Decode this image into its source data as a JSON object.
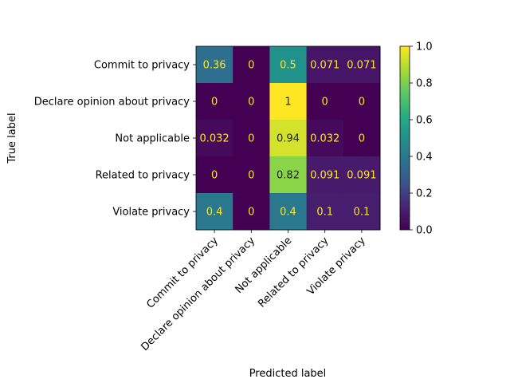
{
  "chart_data": {
    "type": "heatmap",
    "title": "",
    "xlabel": "Predicted label",
    "ylabel": "True label",
    "x_categories": [
      "Commit to privacy",
      "Declare opinion about privacy",
      "Not applicable",
      "Related to privacy",
      "Violate privacy"
    ],
    "y_categories": [
      "Commit to privacy",
      "Declare opinion about privacy",
      "Not applicable",
      "Related to privacy",
      "Violate privacy"
    ],
    "values": [
      [
        0.36,
        0,
        0.5,
        0.071,
        0.071
      ],
      [
        0,
        0,
        1,
        0,
        0
      ],
      [
        0.032,
        0,
        0.94,
        0.032,
        0
      ],
      [
        0,
        0,
        0.82,
        0.091,
        0.091
      ],
      [
        0.4,
        0,
        0.4,
        0.1,
        0.1
      ]
    ],
    "cell_labels": [
      [
        "0.36",
        "0",
        "0.5",
        "0.071",
        "0.071"
      ],
      [
        "0",
        "0",
        "1",
        "0",
        "0"
      ],
      [
        "0.032",
        "0",
        "0.94",
        "0.032",
        "0"
      ],
      [
        "0",
        "0",
        "0.82",
        "0.091",
        "0.091"
      ],
      [
        "0.4",
        "0",
        "0.4",
        "0.1",
        "0.1"
      ]
    ],
    "colorbar": {
      "range": [
        0.0,
        1.0
      ],
      "ticks": [
        "0.0",
        "0.2",
        "0.4",
        "0.6",
        "0.8",
        "1.0"
      ],
      "colormap": "viridis"
    },
    "label_colors": {
      "on_dark": "#fde725",
      "on_light": "#222222"
    }
  }
}
